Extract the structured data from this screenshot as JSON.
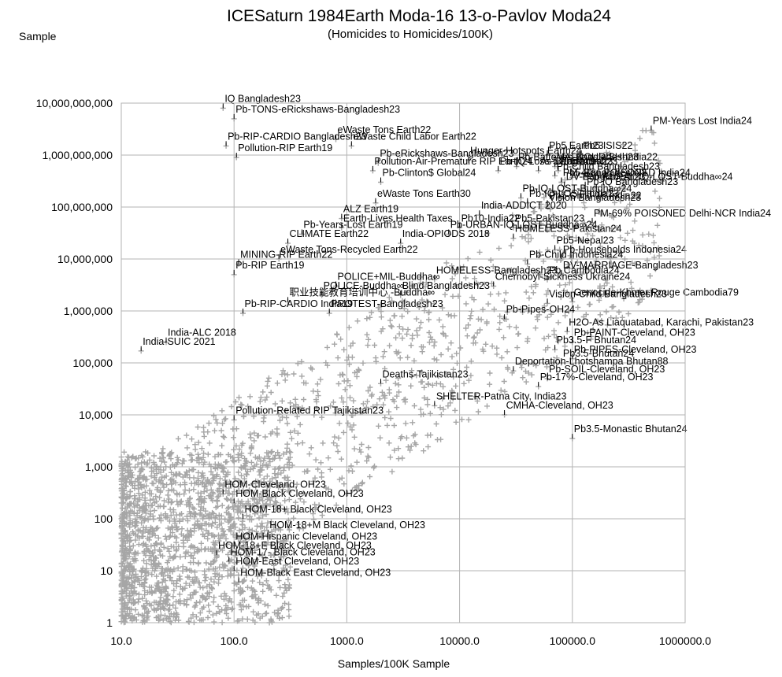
{
  "chart_data": {
    "type": "scatter",
    "title": "ICESaturn 1984Earth Moda-16 13-o-Pavlov Moda24",
    "subtitle": "(Homicides to Homicides/100K)",
    "xlabel": "Samples/100K Sample",
    "ylabel": "Sample",
    "x_scale": "log",
    "y_scale": "log",
    "xlim": [
      10,
      1000000
    ],
    "ylim": [
      1,
      10000000000
    ],
    "grid": true,
    "marker": "+",
    "marker_color": "#a6a6a6",
    "x_ticks": [
      "10.0",
      "100.0",
      "1000.0",
      "10000.0",
      "100000.0",
      "1000000.0"
    ],
    "y_ticks": [
      "1",
      "10",
      "100",
      "1,000",
      "10,000",
      "100,000",
      "1,000,000",
      "10,000,000",
      "100,000,000",
      "1,000,000,000",
      "10,000,000,000"
    ],
    "annotations": [
      {
        "label": "IQ Bangladesh23",
        "x": 80,
        "y": 8000000000
      },
      {
        "label": "Pb-TONS-eRickshaws-Bangladesh23",
        "x": 100,
        "y": 5000000000
      },
      {
        "label": "eWaste Tons Earth22",
        "x": 800,
        "y": 2000000000
      },
      {
        "label": "eWaste Child Labor Earth22",
        "x": 1100,
        "y": 1500000000
      },
      {
        "label": "Pb-eRickshaws-Bangladesh23",
        "x": 1900,
        "y": 700000000
      },
      {
        "label": "Pb-RIP-CARDIO Bangladesh23",
        "x": 85,
        "y": 1500000000
      },
      {
        "label": "Pollution-Air-Premature RIP Earth24",
        "x": 1700,
        "y": 500000000
      },
      {
        "label": "Pollution-RIP Earth19",
        "x": 105,
        "y": 900000000
      },
      {
        "label": "Pb-Clinton$ Global24",
        "x": 2000,
        "y": 300000000
      },
      {
        "label": "Hunger-Hotspots Earth24",
        "x": 12000,
        "y": 800000000
      },
      {
        "label": "Pb-Batteries-Bangladesh23",
        "x": 32000,
        "y": 600000000
      },
      {
        "label": "As-Bangladesh23",
        "x": 50000,
        "y": 500000000
      },
      {
        "label": "Pb-Child Bangladesh23",
        "x": 70000,
        "y": 400000000
      },
      {
        "label": "Pb5-Bangladesh23",
        "x": 80000,
        "y": 300000000
      },
      {
        "label": "DV-Bangladesh23",
        "x": 85000,
        "y": 250000000
      },
      {
        "label": "Pb-IQ Bangladesh23",
        "x": 130000,
        "y": 200000000
      },
      {
        "label": "PM-Years Lost India24",
        "x": 500000,
        "y": 3000000000
      },
      {
        "label": "Pb5 Earth23",
        "x": 60000,
        "y": 1000000000
      },
      {
        "label": "Pb5 ISIS22",
        "x": 120000,
        "y": 1000000000
      },
      {
        "label": "Pb-IQ-Loss-5 Earth19",
        "x": 22000,
        "y": 500000000
      },
      {
        "label": "MALNOURISH-India22",
        "x": 70000,
        "y": 600000000
      },
      {
        "label": "Pb5-India23",
        "x": 75000,
        "y": 500000000
      },
      {
        "label": "PM-40% POISONED India24",
        "x": 80000,
        "y": 300000000
      },
      {
        "label": "Pb-RURAL-IQ-LOST-Buddha∞24",
        "x": 130000,
        "y": 250000000
      },
      {
        "label": "Pb-IQ-LOST-Buddha∞24",
        "x": 35000,
        "y": 150000000
      },
      {
        "label": "Pb-IQ-LOST-India23",
        "x": 40000,
        "y": 120000000
      },
      {
        "label": "Pb5-Child-18 India22",
        "x": 60000,
        "y": 110000000
      },
      {
        "label": "Vision Bangladesh23",
        "x": 60000,
        "y": 100000000
      },
      {
        "label": "eWaste Tons Earth30",
        "x": 1800,
        "y": 120000000
      },
      {
        "label": "ALZ Earth19",
        "x": 900,
        "y": 60000000
      },
      {
        "label": "India-ADDICT 2020",
        "x": 15000,
        "y": 70000000
      },
      {
        "label": "Earth-Lives Health Taxes",
        "x": 900,
        "y": 40000000
      },
      {
        "label": "Pb10-India22",
        "x": 10000,
        "y": 40000000
      },
      {
        "label": "Pb5-Pakistan23",
        "x": 30000,
        "y": 40000000
      },
      {
        "label": "PM-69% POISONED Delhi-NCR India24",
        "x": 150000,
        "y": 50000000
      },
      {
        "label": "Pb-Years-Lost Earth19",
        "x": 400,
        "y": 30000000
      },
      {
        "label": "Pb-URBAN-IQ-LOST-Buddha∞24",
        "x": 8000,
        "y": 30000000
      },
      {
        "label": "HOMELESS-Pakistan24",
        "x": 30000,
        "y": 25000000
      },
      {
        "label": "CLIMATE Earth22",
        "x": 300,
        "y": 20000000
      },
      {
        "label": "India-OPIODS 2018",
        "x": 3000,
        "y": 20000000
      },
      {
        "label": "Pb5-Nepal23",
        "x": 70000,
        "y": 15000000
      },
      {
        "label": "eWaste Tons-Recycled Earth22",
        "x": 250,
        "y": 10000000
      },
      {
        "label": "Pb-Households Indonesia24",
        "x": 80000,
        "y": 10000000
      },
      {
        "label": "Pb-Child Indonesia24",
        "x": 40000,
        "y": 8000000
      },
      {
        "label": "MINING-RIP Earth22",
        "x": 110,
        "y": 8000000
      },
      {
        "label": "Pb-RIP Earth19",
        "x": 100,
        "y": 5000000
      },
      {
        "label": "DV-MARRIAGE-Bangladesh23",
        "x": 80000,
        "y": 5000000
      },
      {
        "label": "Pb Cambodia24",
        "x": 60000,
        "y": 4000000
      },
      {
        "label": "HOMELESS-Bangladesh23",
        "x": 6000,
        "y": 4000000
      },
      {
        "label": "POLICE+MIL-Buddha∞",
        "x": 800,
        "y": 3000000
      },
      {
        "label": "Chernobyl-Sickness Ukraine24",
        "x": 20000,
        "y": 3000000
      },
      {
        "label": "POLICE-Buddha∞",
        "x": 600,
        "y": 2000000
      },
      {
        "label": "Blind Bangladesh23",
        "x": 3000,
        "y": 2000000
      },
      {
        "label": "职业技能教育培训中心 -Buddha∞",
        "x": 300,
        "y": 1500000
      },
      {
        "label": "Genocide-Khmer Rouge Cambodia79",
        "x": 100000,
        "y": 1500000
      },
      {
        "label": "Vision-Child Bangladesh23",
        "x": 60000,
        "y": 1400000
      },
      {
        "label": "Pb-RIP-CARDIO India19",
        "x": 120,
        "y": 900000
      },
      {
        "label": "PROTEST-Bangladesh23",
        "x": 700,
        "y": 900000
      },
      {
        "label": "Pb-Pipes-OH24",
        "x": 25000,
        "y": 700000
      },
      {
        "label": "H2O-As Liaquatabad, Karachi, Pakistan23",
        "x": 90000,
        "y": 400000
      },
      {
        "label": "Pb-PAINT-Cleveland, OH23",
        "x": 100000,
        "y": 250000
      },
      {
        "label": "India-ALC 2018",
        "x": 25,
        "y": 250000
      },
      {
        "label": "Pb3.5-F Bhutan24",
        "x": 70000,
        "y": 180000
      },
      {
        "label": "India-SUIC 2021",
        "x": 15,
        "y": 170000
      },
      {
        "label": "Pb-PIPES-Cleveland, OH23",
        "x": 100000,
        "y": 120000
      },
      {
        "label": "Pb3.5-Bhutan24",
        "x": 80000,
        "y": 100000
      },
      {
        "label": "Deportation-Lhotshampa Bhutan88",
        "x": 30000,
        "y": 70000
      },
      {
        "label": "Pb-SOIL-Cleveland, OH23",
        "x": 60000,
        "y": 50000
      },
      {
        "label": "Deaths-Tajikistan23",
        "x": 2000,
        "y": 40000
      },
      {
        "label": "Pb-17%-Cleveland, OH23",
        "x": 50000,
        "y": 35000
      },
      {
        "label": "SHELTER-Patna City, India23",
        "x": 6000,
        "y": 15000
      },
      {
        "label": "CMHA-Cleveland, OH23",
        "x": 25000,
        "y": 10000
      },
      {
        "label": "Pollution-Related RIP Tajikistan23",
        "x": 100,
        "y": 8000
      },
      {
        "label": "Pb3.5-Monastic Bhutan24",
        "x": 100000,
        "y": 3500
      },
      {
        "label": "HOM-Cleveland, OH23",
        "x": 80,
        "y": 300
      },
      {
        "label": "HOM-Black Cleveland, OH23",
        "x": 100,
        "y": 200
      },
      {
        "label": "HOM-18+ Black Cleveland, OH23",
        "x": 120,
        "y": 100
      },
      {
        "label": "HOM-18+M Black Cleveland, OH23",
        "x": 200,
        "y": 50
      },
      {
        "label": "HOM-Hispanic Cleveland, OH23",
        "x": 100,
        "y": 30
      },
      {
        "label": "HOM-18+F Black Cleveland, OH23",
        "x": 70,
        "y": 20
      },
      {
        "label": "HOM-17- Black Cleveland, OH23",
        "x": 90,
        "y": 15
      },
      {
        "label": "HOM-East Cleveland, OH23",
        "x": 100,
        "y": 10
      },
      {
        "label": "HOM-Black East Cleveland, OH23",
        "x": 110,
        "y": 6
      }
    ]
  }
}
